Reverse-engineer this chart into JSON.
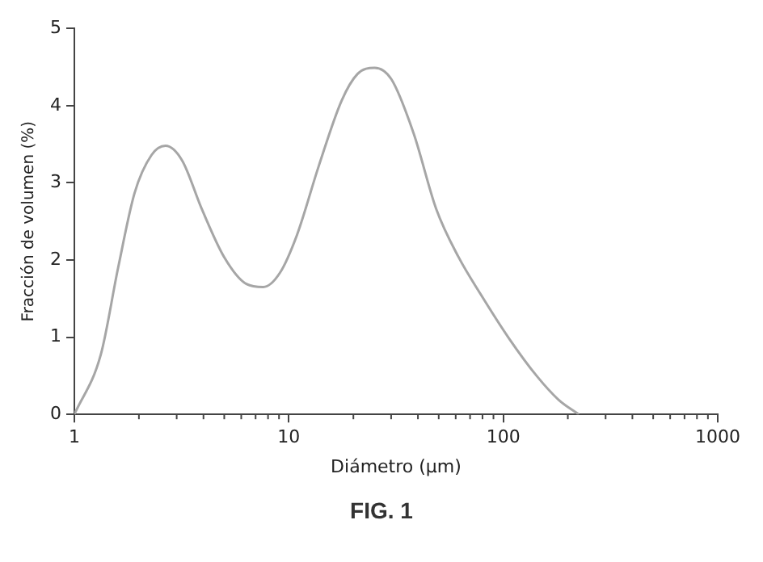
{
  "chart_data": {
    "type": "line",
    "xlabel": "Diámetro (µm)",
    "ylabel": "Fracción de volumen (%)",
    "log": "x",
    "x": [
      1,
      1.33,
      1.6,
      1.91,
      2.29,
      2.66,
      3.18,
      3.93,
      4.99,
      6.34,
      7.6,
      9.07,
      10.9,
      13.8,
      17.6,
      20.9,
      25.1,
      30.1,
      38.2,
      48.7,
      61.8,
      78.7,
      106,
      143,
      181,
      225
    ],
    "series": [
      {
        "color": "#a6a6a6",
        "values": [
          0,
          0.78,
          1.9,
          2.87,
          3.36,
          3.48,
          3.29,
          2.66,
          2.04,
          1.69,
          1.65,
          1.83,
          2.32,
          3.22,
          4.06,
          4.41,
          4.49,
          4.34,
          3.64,
          2.66,
          2.04,
          1.55,
          0.99,
          0.5,
          0.19,
          0
        ]
      }
    ],
    "xlim": [
      1,
      1000
    ],
    "xticks": [
      1,
      10,
      100,
      1000
    ],
    "ylim": [
      0,
      5
    ],
    "yticks": [
      0,
      1,
      2,
      3,
      4,
      5
    ],
    "grid": false,
    "legend": false,
    "marker": "none",
    "line_style": "solid",
    "annotations": [
      "FIG. 1"
    ]
  }
}
